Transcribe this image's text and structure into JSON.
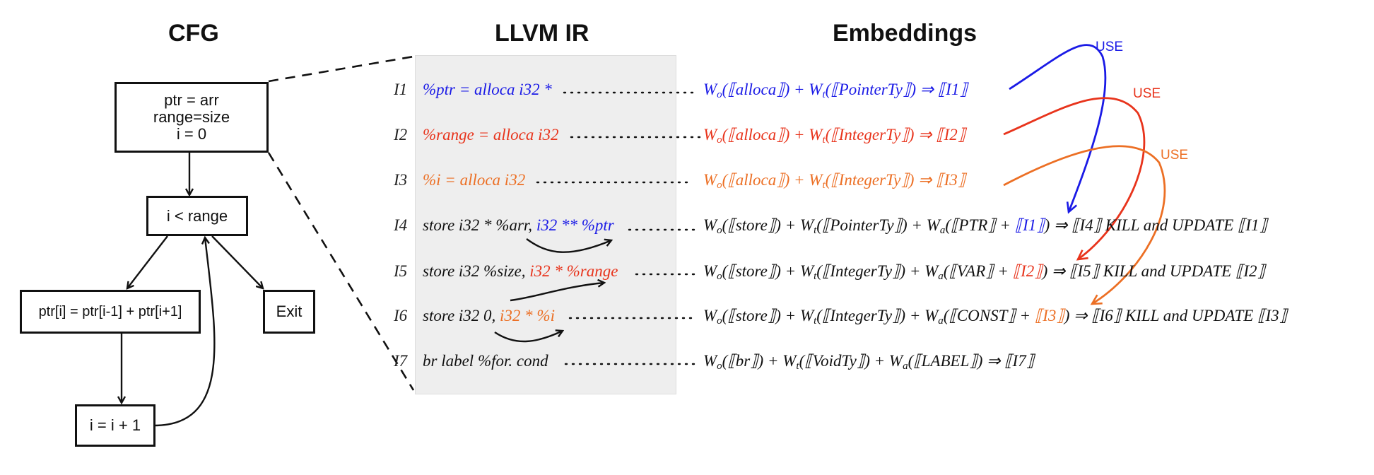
{
  "headings": {
    "cfg": "CFG",
    "ir": "LLVM IR",
    "emb": "Embeddings"
  },
  "cfg": {
    "entry": [
      "ptr = arr",
      "range=size",
      "i = 0"
    ],
    "cond": "i < range",
    "body": "ptr[i] = ptr[i-1] + ptr[i+1]",
    "exit": "Exit",
    "inc": "i = i + 1"
  },
  "ir": {
    "rows": [
      {
        "label": "I1",
        "parts": [
          {
            "t": "%ptr = alloca i32 *",
            "c": "blue"
          }
        ]
      },
      {
        "label": "I2",
        "parts": [
          {
            "t": "%range = alloca i32",
            "c": "red"
          }
        ]
      },
      {
        "label": "I3",
        "parts": [
          {
            "t": "%i = alloca i32",
            "c": "orange"
          }
        ]
      },
      {
        "label": "I4",
        "parts": [
          {
            "t": "store i32 * %arr, ",
            "c": "black"
          },
          {
            "t": "i32 ** %ptr",
            "c": "blue"
          }
        ]
      },
      {
        "label": "I5",
        "parts": [
          {
            "t": "store i32 %size, ",
            "c": "black"
          },
          {
            "t": "i32 * %range",
            "c": "red"
          }
        ]
      },
      {
        "label": "I6",
        "parts": [
          {
            "t": "store i32 0, ",
            "c": "black"
          },
          {
            "t": "i32 * %i",
            "c": "orange"
          }
        ]
      },
      {
        "label": "I7",
        "parts": [
          {
            "t": "br label %for. cond",
            "c": "black"
          }
        ]
      }
    ]
  },
  "embeddings": {
    "rows": [
      [
        {
          "t": "W",
          "c": "blue"
        },
        {
          "t": "o",
          "c": "blue",
          "sub": true
        },
        {
          "t": "(⟦alloca⟧) + ",
          "c": "blue"
        },
        {
          "t": "W",
          "c": "blue"
        },
        {
          "t": "t",
          "c": "blue",
          "sub": true
        },
        {
          "t": "(⟦PointerTy⟧)  ⇒ ⟦I1⟧",
          "c": "blue"
        }
      ],
      [
        {
          "t": "W",
          "c": "red"
        },
        {
          "t": "o",
          "c": "red",
          "sub": true
        },
        {
          "t": "(⟦alloca⟧) + ",
          "c": "red"
        },
        {
          "t": "W",
          "c": "red"
        },
        {
          "t": "t",
          "c": "red",
          "sub": true
        },
        {
          "t": "(⟦IntegerTy⟧)  ⇒ ⟦I2⟧",
          "c": "red"
        }
      ],
      [
        {
          "t": "W",
          "c": "orange"
        },
        {
          "t": "o",
          "c": "orange",
          "sub": true
        },
        {
          "t": "(⟦alloca⟧) + ",
          "c": "orange"
        },
        {
          "t": "W",
          "c": "orange"
        },
        {
          "t": "t",
          "c": "orange",
          "sub": true
        },
        {
          "t": "(⟦IntegerTy⟧)  ⇒ ⟦I3⟧",
          "c": "orange"
        }
      ],
      [
        {
          "t": "W",
          "c": "black"
        },
        {
          "t": "o",
          "c": "black",
          "sub": true
        },
        {
          "t": "(⟦store⟧) + ",
          "c": "black"
        },
        {
          "t": "W",
          "c": "black"
        },
        {
          "t": "t",
          "c": "black",
          "sub": true
        },
        {
          "t": "(⟦PointerTy⟧) + ",
          "c": "black"
        },
        {
          "t": "W",
          "c": "black"
        },
        {
          "t": "a",
          "c": "black",
          "sub": true
        },
        {
          "t": "(⟦PTR⟧ + ",
          "c": "black"
        },
        {
          "t": "⟦I1⟧",
          "c": "blue"
        },
        {
          "t": ")  ⇒ ⟦I4⟧ KILL and UPDATE ⟦I1⟧",
          "c": "black"
        }
      ],
      [
        {
          "t": "W",
          "c": "black"
        },
        {
          "t": "o",
          "c": "black",
          "sub": true
        },
        {
          "t": "(⟦store⟧) + ",
          "c": "black"
        },
        {
          "t": "W",
          "c": "black"
        },
        {
          "t": "t",
          "c": "black",
          "sub": true
        },
        {
          "t": "(⟦IntegerTy⟧) + ",
          "c": "black"
        },
        {
          "t": "W",
          "c": "black"
        },
        {
          "t": "a",
          "c": "black",
          "sub": true
        },
        {
          "t": "(⟦VAR⟧ + ",
          "c": "black"
        },
        {
          "t": "⟦I2⟧",
          "c": "red"
        },
        {
          "t": ")  ⇒ ⟦I5⟧ KILL and UPDATE ⟦I2⟧",
          "c": "black"
        }
      ],
      [
        {
          "t": "W",
          "c": "black"
        },
        {
          "t": "o",
          "c": "black",
          "sub": true
        },
        {
          "t": "(⟦store⟧) + ",
          "c": "black"
        },
        {
          "t": "W",
          "c": "black"
        },
        {
          "t": "t",
          "c": "black",
          "sub": true
        },
        {
          "t": "(⟦IntegerTy⟧) + ",
          "c": "black"
        },
        {
          "t": "W",
          "c": "black"
        },
        {
          "t": "a",
          "c": "black",
          "sub": true
        },
        {
          "t": "(⟦CONST⟧ + ",
          "c": "black"
        },
        {
          "t": "⟦I3⟧",
          "c": "orange"
        },
        {
          "t": ")  ⇒ ⟦I6⟧ KILL and UPDATE ⟦I3⟧",
          "c": "black"
        }
      ],
      [
        {
          "t": "W",
          "c": "black"
        },
        {
          "t": "o",
          "c": "black",
          "sub": true
        },
        {
          "t": "(⟦br⟧) + ",
          "c": "black"
        },
        {
          "t": "W",
          "c": "black"
        },
        {
          "t": "t",
          "c": "black",
          "sub": true
        },
        {
          "t": "(⟦VoidTy⟧) + ",
          "c": "black"
        },
        {
          "t": "W",
          "c": "black"
        },
        {
          "t": "a",
          "c": "black",
          "sub": true
        },
        {
          "t": "(⟦LABEL⟧)  ⇒ ⟦I7⟧",
          "c": "black"
        }
      ]
    ]
  },
  "use_labels": [
    {
      "t": "USE",
      "c": "blue"
    },
    {
      "t": "USE",
      "c": "red"
    },
    {
      "t": "USE",
      "c": "orange"
    }
  ],
  "colors": {
    "blue": "#1a1ae6",
    "red": "#e8341c",
    "orange": "#ec6f24",
    "panel": "#eeeeee"
  }
}
